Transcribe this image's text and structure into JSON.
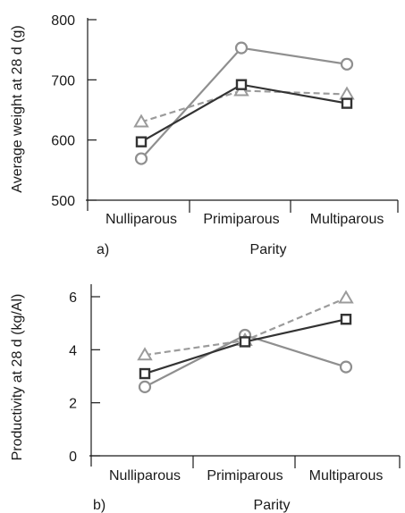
{
  "chart_data": [
    {
      "panel": "a)",
      "type": "line",
      "xlabel": "Parity",
      "ylabel": "Average weight at 28 d (g)",
      "categories": [
        "Nulliparous",
        "Primiparous",
        "Multiparous"
      ],
      "ylim": [
        500,
        800
      ],
      "yticks": [
        500,
        600,
        700,
        800
      ],
      "grid": false,
      "legend": "none",
      "series": [
        {
          "marker": "square",
          "color": "#333333",
          "dash": false,
          "values": [
            597,
            692,
            661
          ]
        },
        {
          "marker": "triangle",
          "color": "#9b9b9b",
          "dash": true,
          "values": [
            630,
            682,
            676
          ]
        },
        {
          "marker": "circle",
          "color": "#8f8f8f",
          "dash": false,
          "values": [
            569,
            753,
            726
          ]
        }
      ]
    },
    {
      "panel": "b)",
      "type": "line",
      "xlabel": "Parity",
      "ylabel": "Productivity at 28 d (kg/Al)",
      "categories": [
        "Nulliparous",
        "Primiparous",
        "Multiparous"
      ],
      "ylim": [
        0,
        6
      ],
      "yticks": [
        0,
        2,
        4,
        6
      ],
      "grid": false,
      "legend": "none",
      "series": [
        {
          "marker": "square",
          "color": "#333333",
          "dash": false,
          "values": [
            3.1,
            4.3,
            5.15
          ]
        },
        {
          "marker": "triangle",
          "color": "#9b9b9b",
          "dash": true,
          "values": [
            3.8,
            4.35,
            5.95
          ]
        },
        {
          "marker": "circle",
          "color": "#8f8f8f",
          "dash": false,
          "values": [
            2.6,
            4.55,
            3.35
          ]
        }
      ]
    }
  ]
}
